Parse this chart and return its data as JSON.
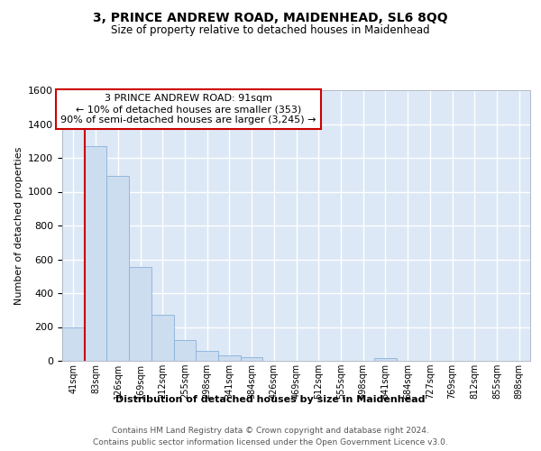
{
  "title": "3, PRINCE ANDREW ROAD, MAIDENHEAD, SL6 8QQ",
  "subtitle": "Size of property relative to detached houses in Maidenhead",
  "xlabel": "Distribution of detached houses by size in Maidenhead",
  "ylabel": "Number of detached properties",
  "categories": [
    "41sqm",
    "83sqm",
    "126sqm",
    "169sqm",
    "212sqm",
    "255sqm",
    "298sqm",
    "341sqm",
    "384sqm",
    "426sqm",
    "469sqm",
    "512sqm",
    "555sqm",
    "598sqm",
    "641sqm",
    "684sqm",
    "727sqm",
    "769sqm",
    "812sqm",
    "855sqm",
    "898sqm"
  ],
  "values": [
    200,
    1270,
    1095,
    555,
    270,
    125,
    60,
    32,
    20,
    0,
    0,
    0,
    0,
    0,
    18,
    0,
    0,
    0,
    0,
    0,
    0
  ],
  "bar_color": "#ccddf0",
  "bar_edge_color": "#8ab0d8",
  "vline_color": "#cc0000",
  "vline_position": 0.5,
  "annotation_line1": "3 PRINCE ANDREW ROAD: 91sqm",
  "annotation_line2": "← 10% of detached houses are smaller (353)",
  "annotation_line3": "90% of semi-detached houses are larger (3,245) →",
  "annotation_box_facecolor": "#ffffff",
  "annotation_box_edgecolor": "#cc0000",
  "ylim_max": 1600,
  "yticks": [
    0,
    200,
    400,
    600,
    800,
    1000,
    1200,
    1400,
    1600
  ],
  "plot_bg_color": "#dce8f5",
  "grid_color": "#ffffff",
  "footer_line1": "Contains HM Land Registry data © Crown copyright and database right 2024.",
  "footer_line2": "Contains public sector information licensed under the Open Government Licence v3.0."
}
